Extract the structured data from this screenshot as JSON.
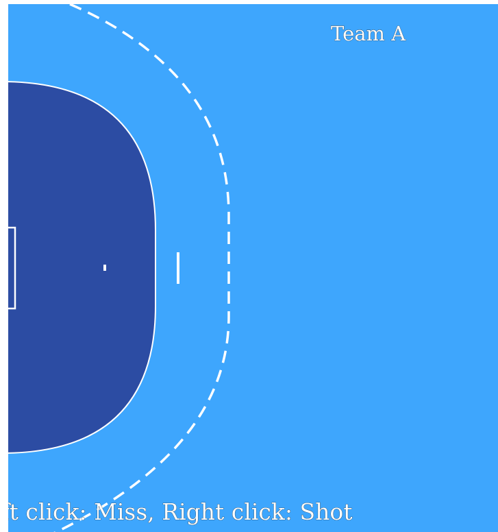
{
  "court": {
    "team_label": "Team A",
    "instruction": "Left click: Miss, Right click: Shot",
    "colors": {
      "court": "#3ea6fd",
      "goal_area": "#2c4ca3",
      "lines": "#ffffff",
      "frame": "#ffffff"
    }
  }
}
